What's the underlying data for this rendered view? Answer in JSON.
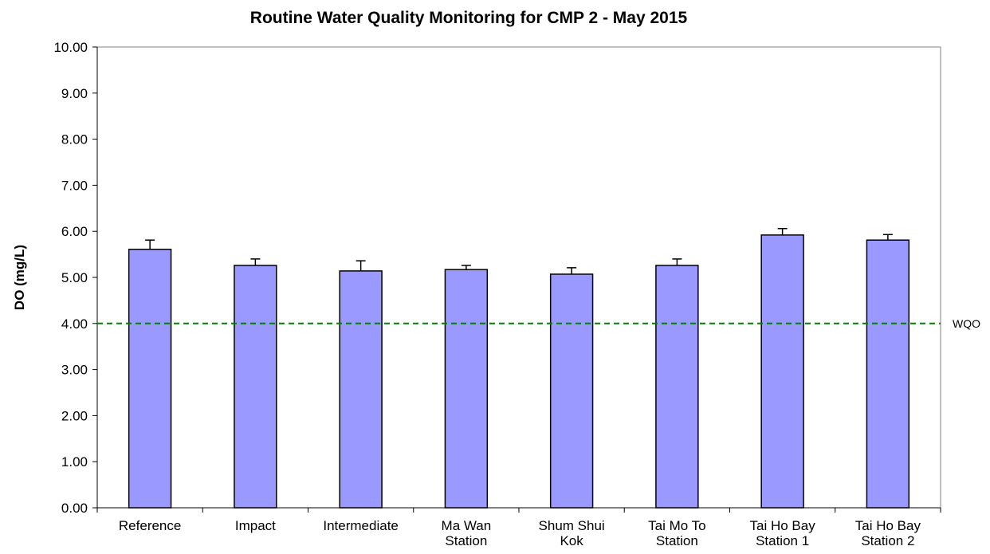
{
  "chart_data": {
    "type": "bar",
    "title": "Routine Water Quality Monitoring for CMP 2 - May 2015",
    "y_label": "DO (mg/L)",
    "categories": [
      "Reference",
      "Impact",
      "Intermediate",
      "Ma Wan Station",
      "Shum Shui Kok",
      "Tai Mo To Station",
      "Tai Ho Bay Station 1",
      "Tai Ho Bay Station 2"
    ],
    "values": [
      5.61,
      5.26,
      5.14,
      5.17,
      5.07,
      5.26,
      5.92,
      5.81
    ],
    "errors": [
      0.2,
      0.14,
      0.22,
      0.09,
      0.14,
      0.14,
      0.14,
      0.12
    ],
    "color": "#9999ff",
    "ylim": [
      0,
      10
    ],
    "yticks": [
      {
        "value": 0,
        "label": "0.00"
      },
      {
        "value": 1,
        "label": "1.00"
      },
      {
        "value": 2,
        "label": "2.00"
      },
      {
        "value": 3,
        "label": "3.00"
      },
      {
        "value": 4,
        "label": "4.00"
      },
      {
        "value": 5,
        "label": "5.00"
      },
      {
        "value": 6,
        "label": "6.00"
      },
      {
        "value": 7,
        "label": "7.00"
      },
      {
        "value": 8,
        "label": "8.00"
      },
      {
        "value": 9,
        "label": "9.00"
      },
      {
        "value": 10,
        "label": "10.00"
      }
    ],
    "reference_line": {
      "value": 4,
      "label": "WQO",
      "color": "#008000"
    }
  }
}
